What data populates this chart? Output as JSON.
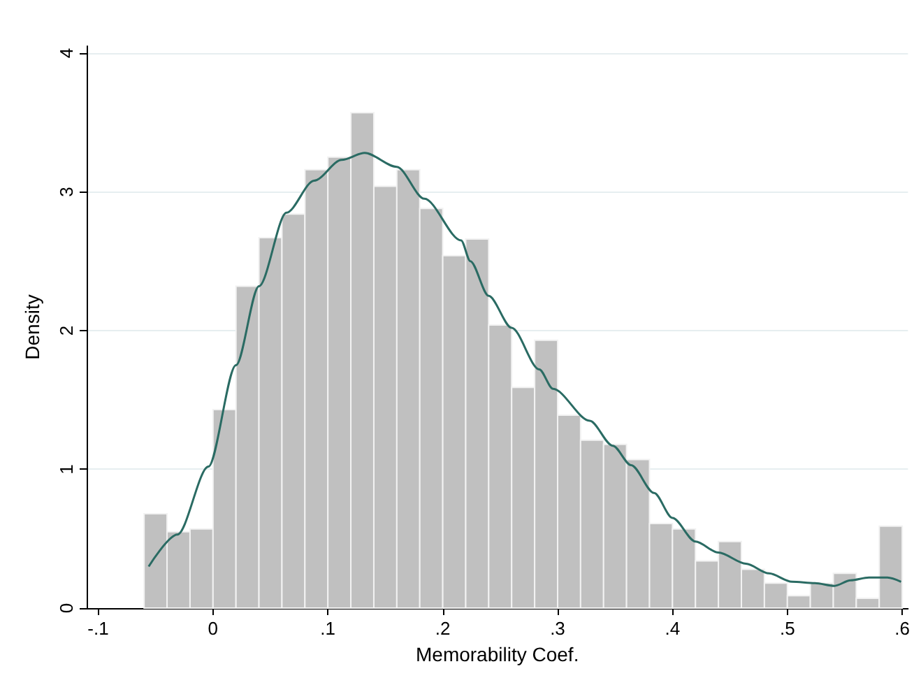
{
  "chart_data": {
    "type": "histogram",
    "xlabel": "Memorability Coef.",
    "ylabel": "Density",
    "bins": [
      -0.06,
      -0.04,
      -0.02,
      0,
      0.02,
      0.04,
      0.06,
      0.08,
      0.1,
      0.12,
      0.14,
      0.16,
      0.18,
      0.2,
      0.22,
      0.24,
      0.26,
      0.28,
      0.3,
      0.32,
      0.34,
      0.36,
      0.38,
      0.4,
      0.42,
      0.44,
      0.46,
      0.48,
      0.5,
      0.52,
      0.54,
      0.56,
      0.58,
      0.6
    ],
    "values": [
      0.68,
      0.55,
      0.57,
      1.43,
      2.32,
      2.67,
      2.84,
      3.16,
      3.25,
      3.57,
      3.04,
      3.16,
      2.88,
      2.54,
      2.66,
      2.04,
      1.59,
      1.93,
      1.39,
      1.21,
      1.18,
      1.07,
      0.61,
      0.57,
      0.34,
      0.48,
      0.28,
      0.18,
      0.09,
      0.18,
      0.25,
      0.07,
      0.59
    ],
    "color": "#c0c0c0",
    "series": [
      {
        "type": "line",
        "color": "#2a6b63",
        "x": [
          -0.056,
          -0.031,
          -0.004,
          0.02,
          0.04,
          0.064,
          0.088,
          0.112,
          0.132,
          0.16,
          0.184,
          0.216,
          0.224,
          0.24,
          0.26,
          0.284,
          0.296,
          0.328,
          0.348,
          0.364,
          0.384,
          0.4,
          0.42,
          0.44,
          0.464,
          0.484,
          0.504,
          0.524,
          0.541,
          0.555,
          0.571,
          0.587,
          0.599
        ],
        "values": [
          0.3,
          0.53,
          1.02,
          1.75,
          2.32,
          2.85,
          3.08,
          3.23,
          3.28,
          3.18,
          2.95,
          2.65,
          2.5,
          2.25,
          2.02,
          1.72,
          1.58,
          1.35,
          1.17,
          1.03,
          0.83,
          0.65,
          0.48,
          0.4,
          0.32,
          0.25,
          0.19,
          0.18,
          0.16,
          0.2,
          0.22,
          0.22,
          0.19
        ]
      }
    ],
    "xlim": [
      -0.11,
      0.605
    ],
    "xticks": [
      {
        "value": -0.1,
        "label": "-.1"
      },
      {
        "value": 0,
        "label": "0"
      },
      {
        "value": 0.1,
        "label": ".1"
      },
      {
        "value": 0.2,
        "label": ".2"
      },
      {
        "value": 0.3,
        "label": ".3"
      },
      {
        "value": 0.4,
        "label": ".4"
      },
      {
        "value": 0.5,
        "label": ".5"
      },
      {
        "value": 0.6,
        "label": ".6"
      }
    ],
    "ylim": [
      0,
      4.05
    ],
    "yticks": [
      0,
      1,
      2,
      3,
      4
    ],
    "grid": "y",
    "line_style": "solid",
    "marker": "none"
  }
}
